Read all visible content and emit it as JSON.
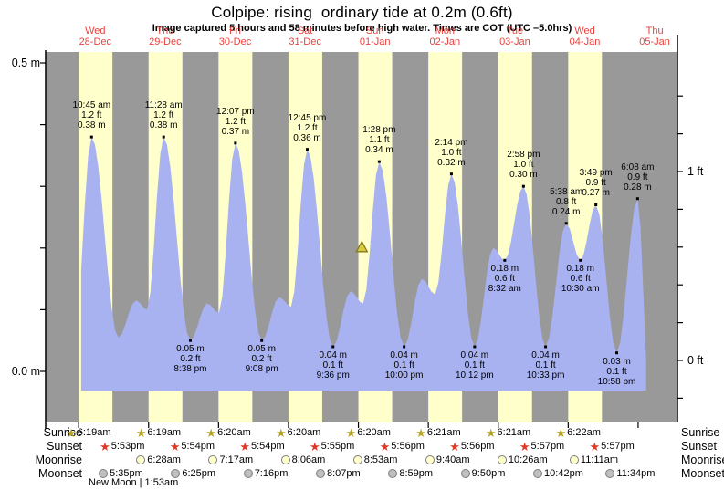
{
  "title": "Colpipe: rising  ordinary tide at 0.2m (0.6ft)",
  "subtitle": "Image captured 5 hours and 58 minutes before high water. Times are COT (UTC –5.0hrs)",
  "axes": {
    "left_top": "0.5 m",
    "left_bottom": "0.0 m",
    "right_top": "1 ft",
    "right_bottom": "0 ft"
  },
  "days": [
    {
      "name": "Wed",
      "date": "28-Dec"
    },
    {
      "name": "Thu",
      "date": "29-Dec"
    },
    {
      "name": "Fri",
      "date": "30-Dec"
    },
    {
      "name": "Sat",
      "date": "31-Dec"
    },
    {
      "name": "Sun",
      "date": "01-Jan"
    },
    {
      "name": "Mon",
      "date": "02-Jan"
    },
    {
      "name": "Tue",
      "date": "03-Jan"
    },
    {
      "name": "Wed",
      "date": "04-Jan"
    },
    {
      "name": "Thu",
      "date": "05-Jan"
    }
  ],
  "chart_data": {
    "type": "area",
    "ylabel_left_unit": "m",
    "ylabel_right_unit": "ft",
    "ylim_m": [
      0.0,
      0.5
    ],
    "ylim_ft_labels": [
      0,
      1
    ],
    "colors": {
      "night_band": "#999999",
      "day_band": "#ffffcc",
      "tide_fill": "#a9b2f0",
      "day_label": "#e9423c",
      "marker_fill": "#d9cd3f",
      "marker_stroke": "#877a1e",
      "sunrise_icon": "#b8a426",
      "sunset_icon": "#dd3a28",
      "moonrise_icon": "#ffffcc",
      "moonset_icon": "#bfbfbf",
      "icon_edge": "#7d7d7d"
    },
    "extremes": [
      {
        "type": "low",
        "day": 0,
        "time": "4:48 am",
        "value": 0.05,
        "labeled": false
      },
      {
        "type": "high",
        "day": 0,
        "time": "10:45 am",
        "value": 0.38,
        "labeled": true,
        "lines": [
          "10:45 am",
          "1.2 ft",
          "0.38 m"
        ]
      },
      {
        "type": "low",
        "day": 0,
        "time": "7:55 pm",
        "value": 0.055,
        "labeled": false
      },
      {
        "type": "high",
        "day": 1,
        "time": "2:00 am",
        "value": 0.115,
        "labeled": false
      },
      {
        "type": "low",
        "day": 1,
        "time": "5:46 am",
        "value": 0.1,
        "labeled": false
      },
      {
        "type": "high",
        "day": 1,
        "time": "11:28 am",
        "value": 0.38,
        "labeled": true,
        "lines": [
          "11:28 am",
          "1.2 ft",
          "0.38 m"
        ]
      },
      {
        "type": "low",
        "day": 1,
        "time": "8:38 pm",
        "value": 0.05,
        "labeled": true,
        "lines": [
          "0.05 m",
          "0.2 ft",
          "8:38 pm"
        ]
      },
      {
        "type": "high",
        "day": 2,
        "time": "2:24 am",
        "value": 0.11,
        "labeled": false
      },
      {
        "type": "low",
        "day": 2,
        "time": "6:29 am",
        "value": 0.095,
        "labeled": false
      },
      {
        "type": "high",
        "day": 2,
        "time": "12:07 pm",
        "value": 0.37,
        "labeled": true,
        "lines": [
          "12:07 pm",
          "1.2 ft",
          "0.37 m"
        ]
      },
      {
        "type": "low",
        "day": 2,
        "time": "9:08 pm",
        "value": 0.05,
        "labeled": true,
        "lines": [
          "0.05 m",
          "0.2 ft",
          "9:08 pm"
        ]
      },
      {
        "type": "high",
        "day": 3,
        "time": "3:07 am",
        "value": 0.12,
        "labeled": false
      },
      {
        "type": "low",
        "day": 3,
        "time": "7:12 am",
        "value": 0.105,
        "labeled": false
      },
      {
        "type": "high",
        "day": 3,
        "time": "12:45 pm",
        "value": 0.36,
        "labeled": true,
        "lines": [
          "12:45 pm",
          "1.2 ft",
          "0.36 m"
        ]
      },
      {
        "type": "low",
        "day": 3,
        "time": "9:36 pm",
        "value": 0.04,
        "labeled": true,
        "lines": [
          "0.04 m",
          "0.1 ft",
          "9:36 pm"
        ]
      },
      {
        "type": "high",
        "day": 4,
        "time": "3:36 am",
        "value": 0.13,
        "labeled": false
      },
      {
        "type": "low",
        "day": 4,
        "time": "7:55 am",
        "value": 0.11,
        "labeled": false
      },
      {
        "type": "high",
        "day": 4,
        "time": "1:28 pm",
        "value": 0.34,
        "labeled": true,
        "lines": [
          "1:28 pm",
          "1.1 ft",
          "0.34 m"
        ]
      },
      {
        "type": "low",
        "day": 4,
        "time": "10:00 pm",
        "value": 0.04,
        "labeled": true,
        "lines": [
          "0.04 m",
          "0.1 ft",
          "10:00 pm"
        ]
      },
      {
        "type": "high",
        "day": 5,
        "time": "4:05 am",
        "value": 0.15,
        "labeled": false
      },
      {
        "type": "low",
        "day": 5,
        "time": "8:38 am",
        "value": 0.125,
        "labeled": false
      },
      {
        "type": "high",
        "day": 5,
        "time": "2:14 pm",
        "value": 0.32,
        "labeled": true,
        "lines": [
          "2:14 pm",
          "1.0 ft",
          "0.32 m"
        ]
      },
      {
        "type": "low",
        "day": 5,
        "time": "10:12 pm",
        "value": 0.04,
        "labeled": true,
        "lines": [
          "0.04 m",
          "0.1 ft",
          "10:12 pm"
        ]
      },
      {
        "type": "high",
        "day": 6,
        "time": "4:34 am",
        "value": 0.2,
        "labeled": false
      },
      {
        "type": "low",
        "day": 6,
        "time": "8:32 am",
        "value": 0.18,
        "labeled": true,
        "lines": [
          "0.18 m",
          "0.6 ft",
          "8:32 am"
        ]
      },
      {
        "type": "high",
        "day": 6,
        "time": "2:58 pm",
        "value": 0.3,
        "labeled": true,
        "lines": [
          "2:58 pm",
          "1.0 ft",
          "0.30 m"
        ]
      },
      {
        "type": "low",
        "day": 6,
        "time": "10:33 pm",
        "value": 0.04,
        "labeled": true,
        "lines": [
          "0.04 m",
          "0.1 ft",
          "10:33 pm"
        ]
      },
      {
        "type": "high",
        "day": 7,
        "time": "5:38 am",
        "value": 0.24,
        "labeled": true,
        "lines": [
          "5:38 am",
          "0.8 ft",
          "0.24 m"
        ]
      },
      {
        "type": "low",
        "day": 7,
        "time": "10:30 am",
        "value": 0.18,
        "labeled": true,
        "lines": [
          "0.18 m",
          "0.6 ft",
          "10:30 am"
        ]
      },
      {
        "type": "high",
        "day": 7,
        "time": "3:49 pm",
        "value": 0.27,
        "labeled": true,
        "lines": [
          "3:49 pm",
          "0.9 ft",
          "0.27 m"
        ]
      },
      {
        "type": "low",
        "day": 7,
        "time": "10:58 pm",
        "value": 0.03,
        "labeled": true,
        "lines": [
          "0.03 m",
          "0.1 ft",
          "10:58 pm"
        ]
      },
      {
        "type": "high",
        "day": 8,
        "time": "6:08 am",
        "value": 0.28,
        "labeled": true,
        "lines": [
          "6:08 am",
          "0.9 ft",
          "0.28 m"
        ]
      },
      {
        "type": "low",
        "day": 8,
        "time": "10:05 am",
        "value": -0.03,
        "labeled": false
      }
    ],
    "current_marker": {
      "day": 4,
      "time": "7:30 am",
      "value_m": 0.2
    }
  },
  "astro": {
    "rows": [
      {
        "label": "Sunrise",
        "icon": "sunrise-star",
        "entries": [
          {
            "day": 0,
            "time": "6:19am"
          },
          {
            "day": 1,
            "time": "6:19am"
          },
          {
            "day": 2,
            "time": "6:20am"
          },
          {
            "day": 3,
            "time": "6:20am"
          },
          {
            "day": 4,
            "time": "6:20am"
          },
          {
            "day": 5,
            "time": "6:21am"
          },
          {
            "day": 6,
            "time": "6:21am"
          },
          {
            "day": 7,
            "time": "6:22am"
          }
        ]
      },
      {
        "label": "Sunset",
        "icon": "sunset-star",
        "entries": [
          {
            "day": 0,
            "time": "5:53pm"
          },
          {
            "day": 1,
            "time": "5:54pm"
          },
          {
            "day": 2,
            "time": "5:54pm"
          },
          {
            "day": 3,
            "time": "5:55pm"
          },
          {
            "day": 4,
            "time": "5:56pm"
          },
          {
            "day": 5,
            "time": "5:56pm"
          },
          {
            "day": 6,
            "time": "5:57pm"
          },
          {
            "day": 7,
            "time": "5:57pm"
          }
        ]
      },
      {
        "label": "Moonrise",
        "icon": "moonrise-circle",
        "entries": [
          {
            "day": 1,
            "time": "6:28am"
          },
          {
            "day": 2,
            "time": "7:17am"
          },
          {
            "day": 3,
            "time": "8:06am"
          },
          {
            "day": 4,
            "time": "8:53am"
          },
          {
            "day": 5,
            "time": "9:40am"
          },
          {
            "day": 6,
            "time": "10:26am"
          },
          {
            "day": 7,
            "time": "11:11am"
          }
        ]
      },
      {
        "label": "Moonset",
        "icon": "moonset-circle",
        "entries": [
          {
            "day": 0,
            "time": "5:35pm"
          },
          {
            "day": 1,
            "time": "6:25pm"
          },
          {
            "day": 2,
            "time": "7:16pm"
          },
          {
            "day": 3,
            "time": "8:07pm"
          },
          {
            "day": 4,
            "time": "8:59pm"
          },
          {
            "day": 5,
            "time": "9:50pm"
          },
          {
            "day": 6,
            "time": "10:42pm"
          },
          {
            "day": 7,
            "time": "11:34pm"
          }
        ]
      }
    ]
  },
  "new_moon": "New Moon | 1:53am"
}
